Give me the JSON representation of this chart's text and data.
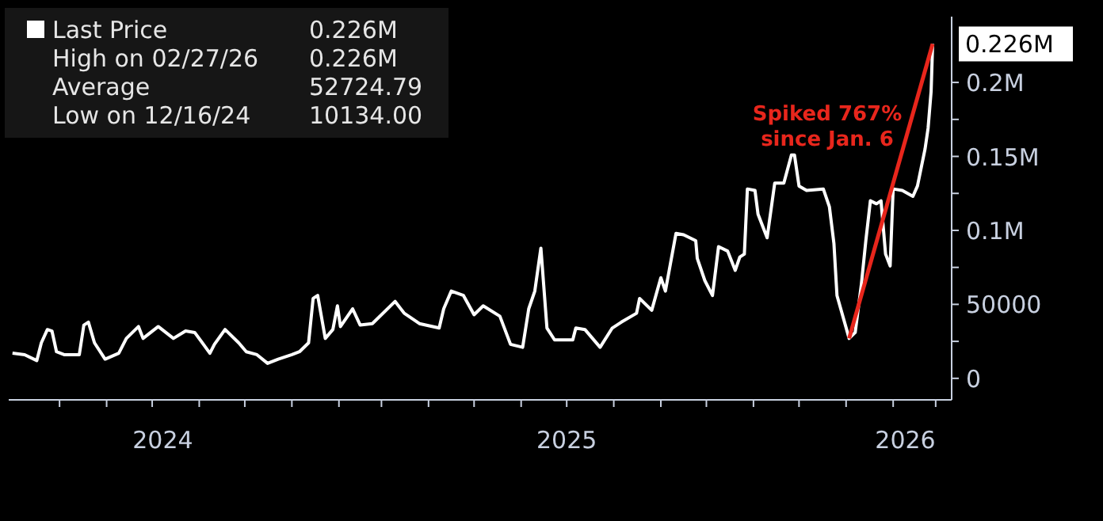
{
  "chart_data": {
    "type": "line",
    "x": [
      "2024-07-01",
      "2024-07-09",
      "2024-07-17",
      "2024-07-20",
      "2024-07-24",
      "2024-07-27",
      "2024-07-30",
      "2024-08-04",
      "2024-08-14",
      "2024-08-17",
      "2024-08-20",
      "2024-08-24",
      "2024-08-31",
      "2024-09-09",
      "2024-09-14",
      "2024-09-22",
      "2024-09-25",
      "2024-10-05",
      "2024-10-15",
      "2024-10-23",
      "2024-10-29",
      "2024-11-08",
      "2024-11-11",
      "2024-11-18",
      "2024-11-27",
      "2024-12-02",
      "2024-12-09",
      "2024-12-16",
      "2024-12-23",
      "2025-01-01",
      "2025-01-06",
      "2025-01-12",
      "2025-01-15",
      "2025-01-18",
      "2025-01-23",
      "2025-01-28",
      "2025-01-31",
      "2025-02-02",
      "2025-02-10",
      "2025-02-15",
      "2025-02-23",
      "2025-03-10",
      "2025-03-16",
      "2025-03-26",
      "2025-04-08",
      "2025-04-11",
      "2025-04-16",
      "2025-04-24",
      "2025-05-01",
      "2025-05-07",
      "2025-05-18",
      "2025-05-25",
      "2025-06-02",
      "2025-06-06",
      "2025-06-10",
      "2025-06-14",
      "2025-06-18",
      "2025-06-23",
      "2025-07-05",
      "2025-07-07",
      "2025-07-13",
      "2025-07-23",
      "2025-07-31",
      "2025-08-06",
      "2025-08-16",
      "2025-08-18",
      "2025-08-26",
      "2025-09-01",
      "2025-09-04",
      "2025-09-11",
      "2025-09-16",
      "2025-09-24",
      "2025-09-25",
      "2025-09-30",
      "2025-10-05",
      "2025-10-09",
      "2025-10-15",
      "2025-10-20",
      "2025-10-23",
      "2025-10-26",
      "2025-10-28",
      "2025-11-02",
      "2025-11-04",
      "2025-11-10",
      "2025-11-15",
      "2025-11-21",
      "2025-11-26",
      "2025-11-28",
      "2025-12-01",
      "2025-12-06",
      "2025-12-17",
      "2025-12-21",
      "2025-12-24",
      "2025-12-26",
      "2026-01-03",
      "2026-01-07",
      "2026-01-11",
      "2026-01-14",
      "2026-01-17",
      "2026-01-21",
      "2026-01-24",
      "2026-01-27",
      "2026-01-30",
      "2026-02-01",
      "2026-02-07",
      "2026-02-14",
      "2026-02-17",
      "2026-02-22",
      "2026-02-24",
      "2026-02-26",
      "2026-02-27"
    ],
    "series": [
      {
        "name": "Last Price",
        "color": "#ffffff",
        "values": [
          17000,
          16000,
          12000,
          24000,
          33000,
          32000,
          18000,
          16000,
          16000,
          36000,
          38000,
          24000,
          13000,
          17000,
          27000,
          35000,
          27000,
          35000,
          27000,
          32000,
          31000,
          17000,
          23000,
          33000,
          24000,
          18000,
          16000,
          10134,
          13000,
          16000,
          18000,
          24000,
          54000,
          56000,
          27000,
          33000,
          49000,
          35000,
          47000,
          36000,
          37000,
          52000,
          44000,
          37000,
          34000,
          47000,
          59000,
          56000,
          43000,
          49000,
          42000,
          23000,
          21000,
          47000,
          59000,
          88000,
          34000,
          26000,
          26000,
          34000,
          33000,
          21000,
          34000,
          38000,
          44000,
          54000,
          46000,
          68000,
          59000,
          98000,
          97000,
          93000,
          81000,
          66000,
          56000,
          89000,
          86000,
          73000,
          82000,
          84000,
          128000,
          127000,
          111000,
          95000,
          132000,
          132000,
          151000,
          151000,
          130000,
          127000,
          128000,
          116000,
          91000,
          56000,
          27000,
          31000,
          63000,
          93000,
          120000,
          118000,
          120000,
          84000,
          76000,
          128000,
          127000,
          123000,
          130000,
          155000,
          169000,
          194000,
          226000
        ]
      },
      {
        "type": "line",
        "color": "#e8261c",
        "x": [
          "2026-01-03",
          "2026-02-27"
        ],
        "values": [
          27000,
          226000
        ]
      }
    ],
    "xlim": [
      "2024-06-28",
      "2026-03-11"
    ],
    "xticks": [
      {
        "value": "2024-08-01",
        "label": null
      },
      {
        "value": "2024-09-01",
        "label": null
      },
      {
        "value": "2024-10-01",
        "label": null
      },
      {
        "value": "2024-11-01",
        "label": null
      },
      {
        "value": "2024-12-01",
        "label": null
      },
      {
        "value": "2025-01-01",
        "label": null
      },
      {
        "value": "2025-02-01",
        "label": null
      },
      {
        "value": "2025-03-01",
        "label": null
      },
      {
        "value": "2025-04-01",
        "label": null
      },
      {
        "value": "2025-05-01",
        "label": null
      },
      {
        "value": "2025-06-01",
        "label": null
      },
      {
        "value": "2025-07-01",
        "label": null
      },
      {
        "value": "2025-08-01",
        "label": null
      },
      {
        "value": "2025-09-01",
        "label": null
      },
      {
        "value": "2025-10-01",
        "label": null
      },
      {
        "value": "2025-11-01",
        "label": null
      },
      {
        "value": "2025-12-01",
        "label": null
      },
      {
        "value": "2026-01-01",
        "label": null
      },
      {
        "value": "2026-02-01",
        "label": null
      },
      {
        "value": "2026-03-01",
        "label": null
      },
      {
        "value": "2024-10-08",
        "label": "2024"
      },
      {
        "value": "2025-07-01",
        "label": "2025"
      },
      {
        "value": "2026-02-09",
        "label": "2026"
      }
    ],
    "ylim": [
      -14000,
      245000
    ],
    "yticks": [
      0,
      {
        "value": 25000,
        "label": null
      },
      50000,
      {
        "value": 75000,
        "label": null
      },
      {
        "value": 100000,
        "label": "0.1M"
      },
      {
        "value": 125000,
        "label": null
      },
      {
        "value": 150000,
        "label": "0.15M"
      },
      {
        "value": 175000,
        "label": null
      },
      {
        "value": 200000,
        "label": "0.2M"
      }
    ],
    "legend": "top left",
    "annotations": [
      "0.226M",
      "High on 02/27/26",
      "0.226M",
      "Average",
      "52724.79",
      "Low on 12/16/24",
      "10134.00",
      "Spiked 767%\nsince Jan. 6",
      {
        "text": "0.226M",
        "x": "2026-02-27",
        "y": 226000
      }
    ]
  }
}
